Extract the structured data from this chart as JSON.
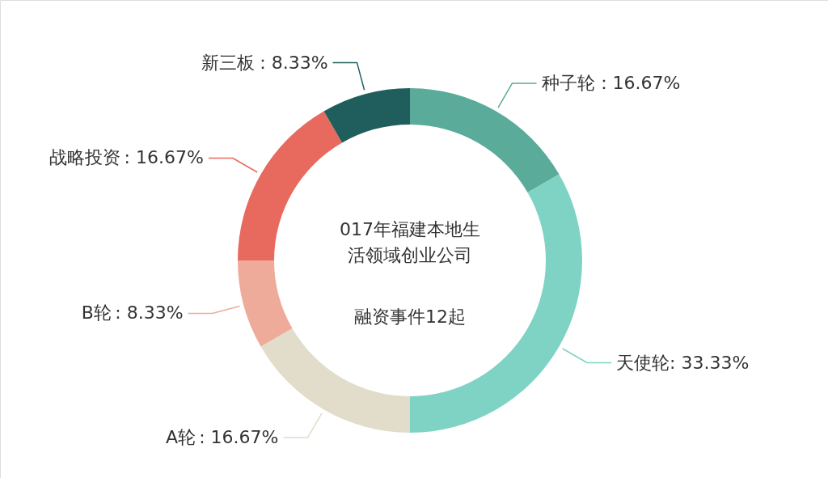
{
  "chart_data": {
    "type": "donut",
    "title": "017年福建本地生活领域创业公司",
    "subtitle": "融资事件12起",
    "categories": [
      "种子轮",
      "天使轮",
      "A轮",
      "B轮",
      "战略投资",
      "新三板"
    ],
    "values": [
      16.67,
      33.33,
      16.67,
      8.33,
      16.67,
      8.33
    ],
    "value_labels": [
      "：16.67%",
      ": 33.33%",
      ": 16.67%",
      ": 8.33%",
      ": 16.67%",
      "：8.33%"
    ],
    "colors": [
      "#5aab9a",
      "#7fd3c4",
      "#e2dccb",
      "#eeab9a",
      "#e8695e",
      "#1f5e5c"
    ]
  }
}
